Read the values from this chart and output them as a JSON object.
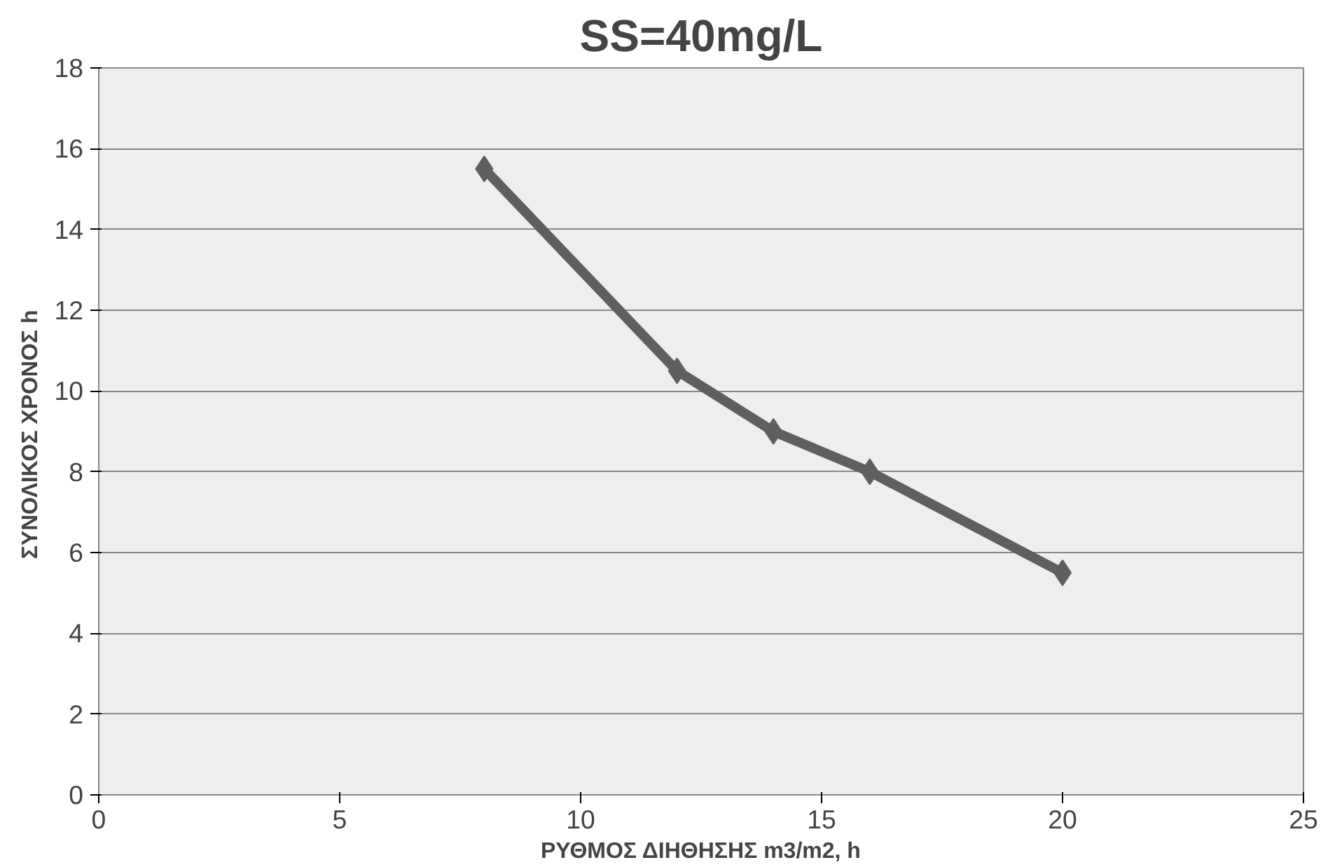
{
  "chart_data": {
    "type": "line",
    "title": "SS=40mg/L",
    "xlabel": "ΡΥΘΜΟΣ ΔΙΗΘΗΣΗΣ m3/m2, h",
    "ylabel": "ΣΥΝΟΛΙΚΟΣ ΧΡΟΝΟΣ  h",
    "x": [
      8,
      12,
      14,
      16,
      20
    ],
    "series": [
      {
        "color": "#5f5f5f",
        "values": [
          15.5,
          10.5,
          9,
          8,
          5.5
        ]
      }
    ],
    "xlim": [
      0,
      25
    ],
    "xticks": [
      0,
      5,
      10,
      15,
      20,
      25
    ],
    "ylim": [
      0,
      18
    ],
    "yticks": [
      0,
      2,
      4,
      6,
      8,
      10,
      12,
      14,
      16,
      18
    ],
    "grid": "y",
    "marker": "diamond",
    "line_style": "solid"
  }
}
